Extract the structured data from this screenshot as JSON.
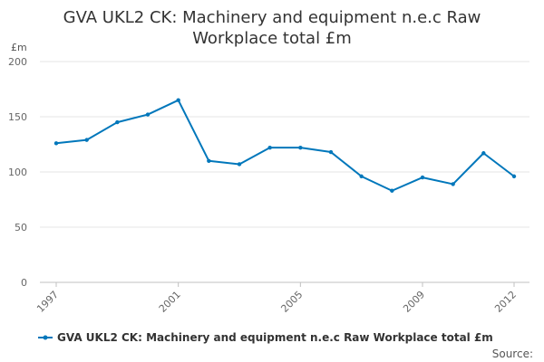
{
  "chart_data": {
    "type": "line",
    "title_line1": "GVA UKL2 CK: Machinery and equipment n.e.c Raw",
    "title_line2": "Workplace total £m",
    "ylabel": "£m",
    "ylim": [
      0,
      200
    ],
    "yticks": [
      0,
      50,
      100,
      150,
      200
    ],
    "x": [
      1997,
      1998,
      1999,
      2000,
      2001,
      2002,
      2003,
      2004,
      2005,
      2006,
      2007,
      2008,
      2009,
      2010,
      2011,
      2012
    ],
    "xtick_labels": [
      "1997",
      "2001",
      "2005",
      "2009",
      "2012"
    ],
    "series": [
      {
        "name": "GVA UKL2 CK: Machinery and equipment n.e.c Raw Workplace total £m",
        "color": "#0077bb",
        "values": [
          126,
          129,
          145,
          152,
          165,
          110,
          107,
          122,
          122,
          118,
          96,
          83,
          95,
          89,
          117,
          96
        ]
      }
    ],
    "grid": true,
    "legend_position": "bottom",
    "source_label": "Source:"
  }
}
